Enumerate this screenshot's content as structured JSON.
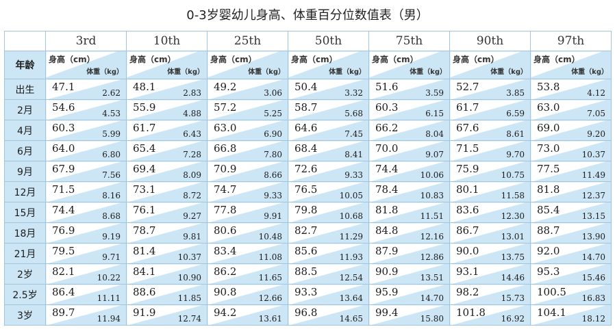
{
  "title": "0-3岁婴幼儿身高、体重百分位数值表（男）",
  "table": {
    "age_header": "年龄",
    "height_label": "身高（cm）",
    "weight_label": "体重（kg）",
    "percentiles": [
      "3rd",
      "10th",
      "25th",
      "50th",
      "75th",
      "90th",
      "97th"
    ],
    "rows": [
      {
        "age": "出生",
        "cells": [
          [
            "47.1",
            "2.62"
          ],
          [
            "48.1",
            "2.83"
          ],
          [
            "49.2",
            "3.06"
          ],
          [
            "50.4",
            "3.32"
          ],
          [
            "51.6",
            "3.59"
          ],
          [
            "52.7",
            "3.85"
          ],
          [
            "53.8",
            "4.12"
          ]
        ]
      },
      {
        "age": "2月",
        "cells": [
          [
            "54.6",
            "4.53"
          ],
          [
            "55.9",
            "4.88"
          ],
          [
            "57.2",
            "5.25"
          ],
          [
            "58.7",
            "5.68"
          ],
          [
            "60.3",
            "6.15"
          ],
          [
            "61.7",
            "6.59"
          ],
          [
            "63.0",
            "7.05"
          ]
        ]
      },
      {
        "age": "4月",
        "cells": [
          [
            "60.3",
            "5.99"
          ],
          [
            "61.7",
            "6.43"
          ],
          [
            "63.0",
            "6.90"
          ],
          [
            "64.6",
            "7.45"
          ],
          [
            "66.2",
            "8.04"
          ],
          [
            "67.6",
            "8.61"
          ],
          [
            "69.0",
            "9.20"
          ]
        ]
      },
      {
        "age": "6月",
        "cells": [
          [
            "64.0",
            "6.80"
          ],
          [
            "65.4",
            "7.28"
          ],
          [
            "66.8",
            "7.80"
          ],
          [
            "68.4",
            "8.41"
          ],
          [
            "70.0",
            "9.07"
          ],
          [
            "71.5",
            "9.70"
          ],
          [
            "73.0",
            "10.37"
          ]
        ]
      },
      {
        "age": "9月",
        "cells": [
          [
            "67.9",
            "7.56"
          ],
          [
            "69.4",
            "8.09"
          ],
          [
            "70.9",
            "8.66"
          ],
          [
            "72.6",
            "9.33"
          ],
          [
            "74.4",
            "10.06"
          ],
          [
            "75.9",
            "10.75"
          ],
          [
            "77.5",
            "11.49"
          ]
        ]
      },
      {
        "age": "12月",
        "cells": [
          [
            "71.5",
            "8.16"
          ],
          [
            "73.1",
            "8.72"
          ],
          [
            "74.7",
            "9.33"
          ],
          [
            "76.5",
            "10.05"
          ],
          [
            "78.4",
            "10.83"
          ],
          [
            "80.1",
            "11.58"
          ],
          [
            "81.8",
            "12.37"
          ]
        ]
      },
      {
        "age": "15月",
        "cells": [
          [
            "74.4",
            "8.68"
          ],
          [
            "76.1",
            "9.27"
          ],
          [
            "77.8",
            "9.91"
          ],
          [
            "79.8",
            "10.68"
          ],
          [
            "81.8",
            "11.51"
          ],
          [
            "83.6",
            "12.30"
          ],
          [
            "85.4",
            "13.15"
          ]
        ]
      },
      {
        "age": "18月",
        "cells": [
          [
            "76.9",
            "9.19"
          ],
          [
            "78.7",
            "9.81"
          ],
          [
            "80.6",
            "10.48"
          ],
          [
            "82.7",
            "11.29"
          ],
          [
            "84.8",
            "12.16"
          ],
          [
            "86.7",
            "13.01"
          ],
          [
            "88.7",
            "13.90"
          ]
        ]
      },
      {
        "age": "21月",
        "cells": [
          [
            "79.5",
            "9.71"
          ],
          [
            "81.4",
            "10.37"
          ],
          [
            "83.4",
            "11.08"
          ],
          [
            "85.6",
            "11.93"
          ],
          [
            "87.9",
            "12.86"
          ],
          [
            "90.0",
            "13.75"
          ],
          [
            "92.0",
            "14.70"
          ]
        ]
      },
      {
        "age": "2岁",
        "cells": [
          [
            "82.1",
            "10.22"
          ],
          [
            "84.1",
            "10.90"
          ],
          [
            "86.2",
            "11.65"
          ],
          [
            "88.5",
            "12.54"
          ],
          [
            "90.9",
            "13.51"
          ],
          [
            "93.1",
            "14.46"
          ],
          [
            "95.3",
            "15.46"
          ]
        ]
      },
      {
        "age": "2.5岁",
        "cells": [
          [
            "86.4",
            "11.11"
          ],
          [
            "88.6",
            "11.85"
          ],
          [
            "90.8",
            "12.66"
          ],
          [
            "93.3",
            "13.64"
          ],
          [
            "95.9",
            "14.70"
          ],
          [
            "98.2",
            "15.73"
          ],
          [
            "100.5",
            "16.83"
          ]
        ]
      },
      {
        "age": "3岁",
        "cells": [
          [
            "89.7",
            "11.94"
          ],
          [
            "91.9",
            "12.74"
          ],
          [
            "94.2",
            "13.61"
          ],
          [
            "96.8",
            "14.65"
          ],
          [
            "99.4",
            "15.80"
          ],
          [
            "101.8",
            "16.92"
          ],
          [
            "104.1",
            "18.12"
          ]
        ]
      }
    ]
  }
}
